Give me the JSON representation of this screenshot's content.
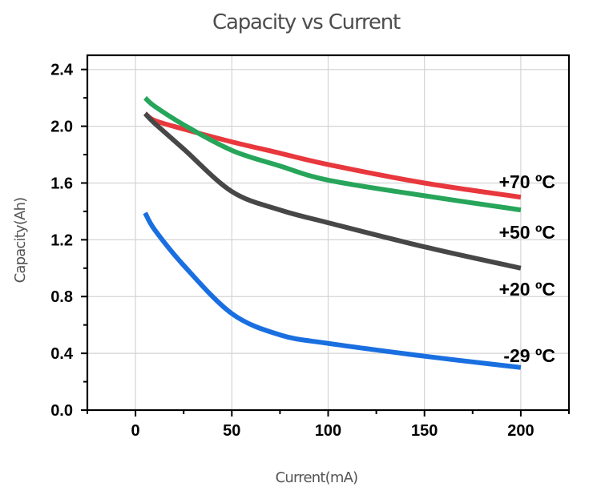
{
  "chart_data": {
    "type": "line",
    "title": "Capacity vs Current",
    "xlabel": "Current(mA)",
    "ylabel": "Capacity(Ah)",
    "xlim": [
      -25,
      225
    ],
    "ylim": [
      0,
      2.5
    ],
    "x_ticks": [
      0,
      50,
      100,
      150,
      200
    ],
    "x_tick_labels": [
      "0",
      "50",
      "100",
      "150",
      "200"
    ],
    "x_minor_ticks": [
      -25,
      25,
      75,
      125,
      175,
      225
    ],
    "y_ticks": [
      0.0,
      0.4,
      0.8,
      1.2,
      1.6,
      2.0,
      2.4
    ],
    "y_tick_labels": [
      "0.0",
      "0.4",
      "0.8",
      "1.2",
      "1.6",
      "2.0",
      "2.4"
    ],
    "y_minor_ticks": [
      0.2,
      0.6,
      1.0,
      1.4,
      1.8,
      2.2
    ],
    "grid": true,
    "legend": "inline labels at right end of each series",
    "series": [
      {
        "name": "+70 ºC",
        "color": "#e8383d",
        "x": [
          5,
          10,
          25,
          50,
          75,
          100,
          150,
          200
        ],
        "y": [
          2.09,
          2.04,
          1.98,
          1.89,
          1.81,
          1.73,
          1.6,
          1.5
        ]
      },
      {
        "name": "+50 ºC",
        "color": "#27a55a",
        "x": [
          5,
          10,
          25,
          50,
          75,
          100,
          150,
          200
        ],
        "y": [
          2.2,
          2.14,
          2.01,
          1.83,
          1.72,
          1.62,
          1.51,
          1.41
        ]
      },
      {
        "name": "+20 ºC",
        "color": "#474747",
        "x": [
          5,
          10,
          25,
          50,
          75,
          100,
          150,
          200
        ],
        "y": [
          2.09,
          2.02,
          1.84,
          1.54,
          1.41,
          1.32,
          1.15,
          1.0
        ]
      },
      {
        "name": "-29 ºC",
        "color": "#1a6fe0",
        "x": [
          5,
          10,
          25,
          50,
          75,
          100,
          150,
          200
        ],
        "y": [
          1.39,
          1.27,
          1.02,
          0.68,
          0.53,
          0.47,
          0.38,
          0.3
        ]
      }
    ]
  }
}
